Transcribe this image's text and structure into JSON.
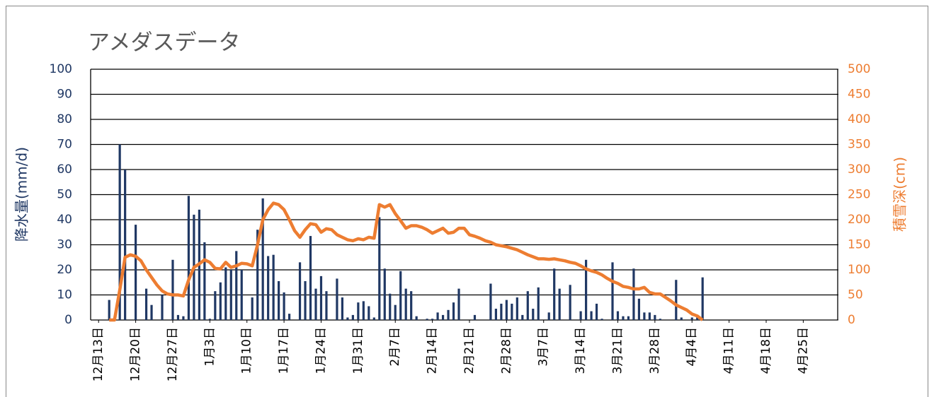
{
  "chart_data": {
    "type": "bar",
    "title": "アメダスデータ",
    "y_label": "降水量(mm/d)",
    "y2_label": "積雪深(cm)",
    "xlim": [
      -0.5,
      140.5
    ],
    "xticks": [
      {
        "value": 1,
        "label": "12月13日"
      },
      {
        "value": 8,
        "label": "12月20日"
      },
      {
        "value": 15,
        "label": "12月27日"
      },
      {
        "value": 22,
        "label": "1月3日"
      },
      {
        "value": 29,
        "label": "1月10日"
      },
      {
        "value": 36,
        "label": "1月17日"
      },
      {
        "value": 43,
        "label": "1月24日"
      },
      {
        "value": 50,
        "label": "1月31日"
      },
      {
        "value": 57,
        "label": "2月7日"
      },
      {
        "value": 64,
        "label": "2月14日"
      },
      {
        "value": 71,
        "label": "2月21日"
      },
      {
        "value": 78,
        "label": "2月28日"
      },
      {
        "value": 85,
        "label": "3月7日"
      },
      {
        "value": 92,
        "label": "3月14日"
      },
      {
        "value": 99,
        "label": "3月21日"
      },
      {
        "value": 106,
        "label": "3月28日"
      },
      {
        "value": 113,
        "label": "4月4日"
      },
      {
        "value": 120,
        "label": "4月11日"
      },
      {
        "value": 127,
        "label": "4月18日"
      },
      {
        "value": 134,
        "label": "4月25日"
      }
    ],
    "ylim": [
      0,
      100
    ],
    "yticks": [
      0,
      10,
      20,
      30,
      40,
      50,
      60,
      70,
      80,
      90,
      100
    ],
    "y2lim": [
      0,
      500
    ],
    "y2ticks": [
      0,
      50,
      100,
      150,
      200,
      250,
      300,
      350,
      400,
      450,
      500
    ],
    "grid": true,
    "series": [
      {
        "type": "bar",
        "color": "#203864",
        "axis": "y",
        "x": [
          3,
          5,
          6,
          8,
          10,
          11,
          13,
          15,
          16,
          17,
          18,
          19,
          20,
          21,
          22,
          23,
          24,
          25,
          26,
          27,
          28,
          30,
          31,
          32,
          33,
          34,
          35,
          36,
          37,
          39,
          40,
          41,
          42,
          43,
          44,
          46,
          47,
          48,
          49,
          50,
          51,
          52,
          53,
          54,
          55,
          56,
          57,
          58,
          59,
          60,
          61,
          63,
          64,
          65,
          66,
          67,
          68,
          69,
          72,
          75,
          76,
          77,
          78,
          79,
          80,
          81,
          82,
          83,
          84,
          86,
          87,
          88,
          90,
          92,
          93,
          94,
          95,
          96,
          98,
          99,
          100,
          101,
          102,
          103,
          104,
          105,
          106,
          107,
          110,
          111,
          113,
          114,
          115
        ],
        "values": [
          8,
          70,
          60,
          38,
          12.5,
          6,
          10,
          24,
          2,
          1.5,
          49.5,
          42,
          44,
          31,
          0.5,
          11.5,
          15,
          21,
          20,
          27.5,
          20,
          9,
          36,
          48.5,
          25.5,
          26,
          15.5,
          11,
          2.5,
          23,
          15.5,
          33.5,
          12.5,
          17.5,
          11.5,
          16.5,
          9,
          1,
          2,
          7,
          7.5,
          5.5,
          1,
          41,
          20.5,
          10.5,
          6,
          19.5,
          12.5,
          11.5,
          1.5,
          0.5,
          0.5,
          3,
          2,
          4,
          7,
          12.5,
          2,
          14.5,
          4.5,
          6.5,
          8,
          6.5,
          9,
          2,
          11.5,
          4.5,
          13,
          3,
          20.5,
          12.5,
          14,
          3.5,
          24,
          3.5,
          6.5,
          0.5,
          23,
          3.5,
          1.5,
          1.5,
          20.5,
          8.5,
          3,
          3,
          2,
          0.5,
          16,
          1,
          1,
          1,
          17
        ]
      },
      {
        "type": "line",
        "color": "#ed7d31",
        "axis": "y2",
        "x": [
          3,
          4,
          5,
          6,
          7,
          8,
          9,
          10,
          11,
          12,
          13,
          14,
          15,
          16,
          17,
          18,
          19,
          20,
          21,
          22,
          23,
          24,
          25,
          26,
          27,
          28,
          29,
          30,
          31,
          32,
          33,
          34,
          35,
          36,
          37,
          38,
          39,
          40,
          41,
          42,
          43,
          44,
          45,
          46,
          47,
          48,
          49,
          50,
          51,
          52,
          53,
          54,
          55,
          56,
          57,
          58,
          59,
          60,
          61,
          62,
          63,
          64,
          65,
          66,
          67,
          68,
          69,
          70,
          71,
          72,
          73,
          74,
          75,
          76,
          77,
          78,
          79,
          80,
          81,
          82,
          83,
          84,
          85,
          86,
          87,
          88,
          89,
          90,
          91,
          92,
          93,
          94,
          95,
          96,
          97,
          98,
          99,
          100,
          101,
          102,
          103,
          104,
          105,
          106,
          107,
          108,
          109,
          110,
          111,
          112,
          113,
          114,
          115
        ],
        "values": [
          0,
          0,
          60,
          125,
          130,
          127,
          118,
          100,
          85,
          70,
          58,
          52,
          50,
          50,
          48,
          80,
          105,
          112,
          120,
          115,
          103,
          102,
          115,
          105,
          108,
          113,
          112,
          108,
          150,
          200,
          220,
          233,
          230,
          220,
          200,
          178,
          165,
          180,
          192,
          190,
          175,
          182,
          180,
          170,
          165,
          160,
          158,
          162,
          160,
          165,
          163,
          230,
          225,
          230,
          212,
          198,
          183,
          188,
          188,
          185,
          180,
          173,
          178,
          183,
          173,
          175,
          183,
          183,
          170,
          167,
          163,
          158,
          155,
          150,
          148,
          146,
          143,
          140,
          135,
          130,
          126,
          122,
          122,
          121,
          122,
          120,
          118,
          115,
          113,
          108,
          102,
          98,
          95,
          90,
          83,
          77,
          73,
          67,
          65,
          62,
          62,
          65,
          55,
          52,
          52,
          45,
          38,
          30,
          25,
          20,
          12,
          8,
          0
        ]
      }
    ]
  }
}
